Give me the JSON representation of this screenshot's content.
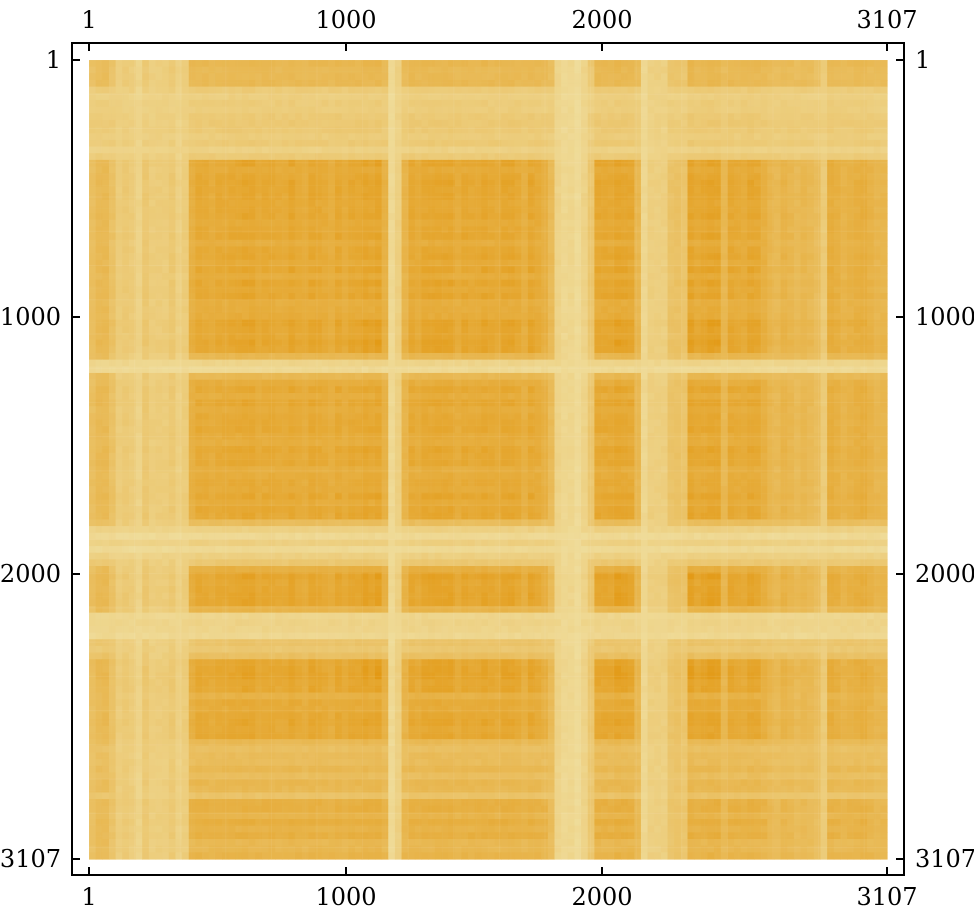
{
  "chart_data": {
    "type": "heatmap",
    "title": "",
    "xlabel": "",
    "ylabel": "",
    "xlim": [
      1,
      3107
    ],
    "ylim": [
      1,
      3107
    ],
    "x_ticks": [
      1,
      1000,
      2000,
      3107
    ],
    "y_ticks": [
      1,
      1000,
      2000,
      3107
    ],
    "x_tick_labels": [
      "1",
      "1000",
      "2000",
      "3107"
    ],
    "y_tick_labels": [
      "1",
      "1000",
      "2000",
      "3107"
    ],
    "y_axis_direction": "top-to-bottom",
    "colors": {
      "high": "#e2960e",
      "low": "#f0dfa0",
      "frame": "#000000",
      "background": "#ffffff"
    },
    "low_bands": [
      {
        "start": 1,
        "end": 120
      },
      {
        "start": 120,
        "end": 380
      },
      {
        "start": 1170,
        "end": 1230
      },
      {
        "start": 1800,
        "end": 1970
      },
      {
        "start": 2150,
        "end": 2330
      },
      {
        "start": 2850,
        "end": 2880
      }
    ],
    "dark_bands": [
      {
        "start": 1,
        "end": 400
      },
      {
        "start": 1000,
        "end": 1170
      },
      {
        "start": 2000,
        "end": 2150
      },
      {
        "start": 2330,
        "end": 2490
      },
      {
        "start": 2880,
        "end": 3107
      }
    ],
    "light_rows": [
      {
        "start": 100,
        "end": 380
      },
      {
        "start": 1150,
        "end": 1240
      },
      {
        "start": 1780,
        "end": 1940
      },
      {
        "start": 2120,
        "end": 2260
      },
      {
        "start": 2450,
        "end": 2490
      },
      {
        "start": 2630,
        "end": 2850
      },
      {
        "start": 2880,
        "end": 3107
      }
    ]
  }
}
